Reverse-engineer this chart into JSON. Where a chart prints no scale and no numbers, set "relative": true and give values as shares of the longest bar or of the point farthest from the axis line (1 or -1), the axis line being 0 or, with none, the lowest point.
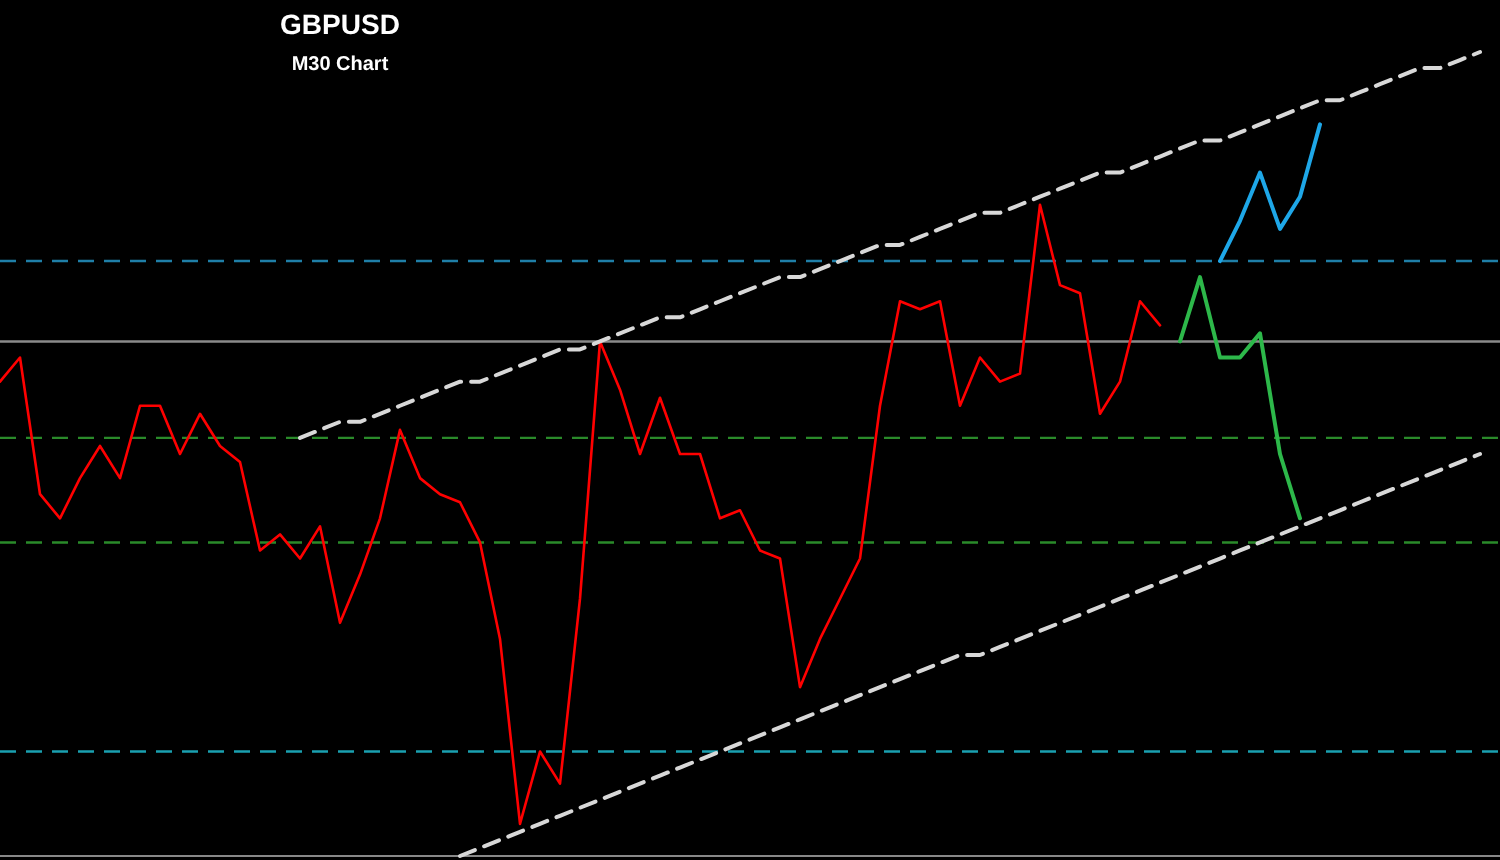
{
  "chart_data": {
    "type": "line",
    "title": "GBPUSD",
    "subtitle": "M30 Chart",
    "relative": true,
    "categories": [
      null,
      null,
      null,
      null,
      null,
      null,
      null,
      null,
      null,
      null,
      null,
      null,
      null,
      null,
      null,
      null,
      null,
      null,
      null,
      null,
      null,
      null,
      null,
      null,
      null,
      null,
      null,
      null,
      null,
      null,
      null,
      null,
      null,
      null,
      null,
      null,
      null,
      null,
      null,
      null,
      null,
      null,
      null,
      null,
      null,
      null,
      null,
      null,
      null,
      null,
      null,
      null,
      null,
      null,
      null,
      null,
      null,
      null,
      null,
      null,
      null,
      null,
      null,
      null,
      null,
      null,
      null,
      null,
      null,
      null,
      null,
      null,
      null,
      null,
      null
    ],
    "series": [
      {
        "color": "#ff0000",
        "line_style": "solid",
        "values": [
          0.59,
          0.62,
          0.45,
          0.42,
          0.47,
          0.51,
          0.47,
          0.56,
          0.56,
          0.5,
          0.55,
          0.51,
          0.49,
          0.38,
          0.4,
          0.37,
          0.41,
          0.29,
          0.35,
          0.42,
          0.53,
          0.47,
          0.45,
          0.44,
          0.39,
          0.27,
          0.04,
          0.13,
          0.09,
          0.32,
          0.64,
          0.58,
          0.5,
          0.57,
          0.5,
          0.5,
          0.42,
          0.43,
          0.38,
          0.37,
          0.21,
          0.27,
          0.32,
          0.37,
          0.56,
          0.69,
          0.68,
          0.69,
          0.56,
          0.62,
          0.59,
          0.6,
          0.81,
          0.71,
          0.7,
          0.55,
          0.59,
          0.69,
          0.66,
          null,
          null,
          null,
          null,
          null,
          null,
          null,
          null,
          null,
          null,
          null,
          null,
          null,
          null,
          null,
          null
        ]
      },
      {
        "color": "#2db84a",
        "line_style": "solid",
        "values": [
          null,
          null,
          null,
          null,
          null,
          null,
          null,
          null,
          null,
          null,
          null,
          null,
          null,
          null,
          null,
          null,
          null,
          null,
          null,
          null,
          null,
          null,
          null,
          null,
          null,
          null,
          null,
          null,
          null,
          null,
          null,
          null,
          null,
          null,
          null,
          null,
          null,
          null,
          null,
          null,
          null,
          null,
          null,
          null,
          null,
          null,
          null,
          null,
          null,
          null,
          null,
          null,
          null,
          null,
          null,
          null,
          null,
          null,
          null,
          0.64,
          0.72,
          0.62,
          0.62,
          0.65,
          0.5,
          0.42,
          null,
          null,
          null,
          null,
          null,
          null,
          null,
          null,
          null
        ]
      },
      {
        "color": "#1ea7e8",
        "line_style": "solid",
        "values": [
          null,
          null,
          null,
          null,
          null,
          null,
          null,
          null,
          null,
          null,
          null,
          null,
          null,
          null,
          null,
          null,
          null,
          null,
          null,
          null,
          null,
          null,
          null,
          null,
          null,
          null,
          null,
          null,
          null,
          null,
          null,
          null,
          null,
          null,
          null,
          null,
          null,
          null,
          null,
          null,
          null,
          null,
          null,
          null,
          null,
          null,
          null,
          null,
          null,
          null,
          null,
          null,
          null,
          null,
          null,
          null,
          null,
          null,
          null,
          null,
          null,
          0.74,
          0.79,
          0.85,
          0.78,
          0.82,
          0.91,
          null,
          null,
          null,
          null,
          null,
          null,
          null,
          null
        ]
      },
      {
        "color": "#d8d8d8",
        "line_style": "dashed",
        "values": [
          null,
          null,
          null,
          null,
          null,
          null,
          null,
          null,
          null,
          null,
          null,
          null,
          null,
          null,
          null,
          0.52,
          0.53,
          0.54,
          0.54,
          0.55,
          0.56,
          0.57,
          0.58,
          0.59,
          0.59,
          0.6,
          0.61,
          0.62,
          0.63,
          0.63,
          0.64,
          0.65,
          0.66,
          0.67,
          0.67,
          0.68,
          0.69,
          0.7,
          0.71,
          0.72,
          0.72,
          0.73,
          0.74,
          0.75,
          0.76,
          0.76,
          0.77,
          0.78,
          0.79,
          0.8,
          0.8,
          0.81,
          0.82,
          0.83,
          0.84,
          0.85,
          0.85,
          0.86,
          0.87,
          0.88,
          0.89,
          0.89,
          0.9,
          0.91,
          0.92,
          0.93,
          0.94,
          0.94,
          0.95,
          0.96,
          0.97,
          0.98,
          0.98,
          0.99,
          1.0
        ]
      },
      {
        "color": "#d8d8d8",
        "line_style": "dashed",
        "values": [
          null,
          null,
          null,
          null,
          null,
          null,
          null,
          null,
          null,
          null,
          null,
          null,
          null,
          null,
          null,
          null,
          null,
          null,
          null,
          null,
          null,
          null,
          null,
          0,
          0.01,
          0.02,
          0.03,
          0.04,
          0.05,
          0.06,
          0.07,
          0.08,
          0.09,
          0.1,
          0.11,
          0.12,
          0.13,
          0.14,
          0.15,
          0.16,
          0.17,
          0.18,
          0.19,
          0.2,
          0.21,
          0.22,
          0.23,
          0.24,
          0.25,
          0.25,
          0.26,
          0.27,
          0.28,
          0.29,
          0.3,
          0.31,
          0.32,
          0.33,
          0.34,
          0.35,
          0.36,
          0.37,
          0.38,
          0.39,
          0.4,
          0.41,
          0.42,
          0.43,
          0.44,
          0.45,
          0.46,
          0.47,
          0.48,
          0.49,
          0.5
        ]
      }
    ],
    "ref_lines": [
      {
        "axis": "y",
        "value": 0.74,
        "color": "#1f7fa8",
        "line_style": "dashed"
      },
      {
        "axis": "y",
        "value": 0.64,
        "color": "#8a8a8a",
        "line_style": "solid"
      },
      {
        "axis": "y",
        "value": 0.52,
        "color": "#2a8a2a",
        "line_style": "dashed"
      },
      {
        "axis": "y",
        "value": 0.39,
        "color": "#2a8a2a",
        "line_style": "dashed"
      },
      {
        "axis": "y",
        "value": 0.13,
        "color": "#1aa0b0",
        "line_style": "dashed"
      }
    ]
  }
}
